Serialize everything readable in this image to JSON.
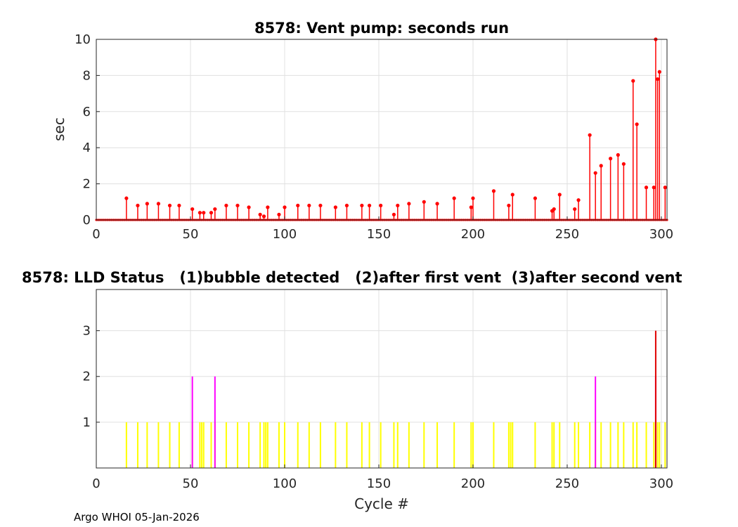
{
  "footer": "Argo WHOI 05-Jan-2026",
  "chart_data": [
    {
      "type": "stem",
      "title": "8578: Vent pump: seconds run",
      "xlabel": "",
      "ylabel": "sec",
      "xlim": [
        0,
        303
      ],
      "ylim": [
        0,
        10
      ],
      "xticks": [
        0,
        50,
        100,
        150,
        200,
        250,
        300
      ],
      "yticks": [
        0,
        2,
        4,
        6,
        8,
        10
      ],
      "grid": true,
      "color": "#ff0000",
      "baseline_x": [
        0,
        303
      ],
      "points": [
        [
          16,
          1.2
        ],
        [
          22,
          0.8
        ],
        [
          27,
          0.9
        ],
        [
          33,
          0.9
        ],
        [
          39,
          0.8
        ],
        [
          44,
          0.8
        ],
        [
          51,
          0.6
        ],
        [
          55,
          0.4
        ],
        [
          57,
          0.4
        ],
        [
          61,
          0.4
        ],
        [
          63,
          0.6
        ],
        [
          69,
          0.8
        ],
        [
          75,
          0.8
        ],
        [
          81,
          0.7
        ],
        [
          87,
          0.3
        ],
        [
          89,
          0.2
        ],
        [
          91,
          0.7
        ],
        [
          97,
          0.3
        ],
        [
          100,
          0.7
        ],
        [
          107,
          0.8
        ],
        [
          113,
          0.8
        ],
        [
          119,
          0.8
        ],
        [
          127,
          0.7
        ],
        [
          133,
          0.8
        ],
        [
          141,
          0.8
        ],
        [
          145,
          0.8
        ],
        [
          151,
          0.8
        ],
        [
          158,
          0.3
        ],
        [
          160,
          0.8
        ],
        [
          166,
          0.9
        ],
        [
          174,
          1.0
        ],
        [
          181,
          0.9
        ],
        [
          190,
          1.2
        ],
        [
          199,
          0.7
        ],
        [
          200,
          1.2
        ],
        [
          211,
          1.6
        ],
        [
          219,
          0.8
        ],
        [
          221,
          1.4
        ],
        [
          233,
          1.2
        ],
        [
          242,
          0.5
        ],
        [
          243,
          0.6
        ],
        [
          246,
          1.4
        ],
        [
          254,
          0.6
        ],
        [
          256,
          1.1
        ],
        [
          262,
          4.7
        ],
        [
          265,
          2.6
        ],
        [
          268,
          3.0
        ],
        [
          273,
          3.4
        ],
        [
          277,
          3.6
        ],
        [
          280,
          3.1
        ],
        [
          285,
          7.7
        ],
        [
          287,
          5.3
        ],
        [
          292,
          1.8
        ],
        [
          296,
          1.8
        ],
        [
          297,
          10.0
        ],
        [
          298,
          7.8
        ],
        [
          299,
          8.2
        ],
        [
          302,
          1.8
        ]
      ]
    },
    {
      "type": "stem",
      "title": "8578: LLD Status   (1)bubble detected   (2)after first vent  (3)after second vent",
      "xlabel": "Cycle #",
      "ylabel": "",
      "xlim": [
        0,
        303
      ],
      "ylim": [
        0,
        3.9
      ],
      "xticks": [
        0,
        50,
        100,
        150,
        200,
        250,
        300
      ],
      "yticks": [
        1,
        2,
        3
      ],
      "grid": true,
      "series": [
        {
          "name": "bubble detected",
          "level": 1,
          "color": "#ffff00",
          "x": [
            16,
            22,
            27,
            33,
            39,
            44,
            51,
            55,
            56,
            57,
            61,
            63,
            69,
            75,
            81,
            87,
            89,
            90,
            91,
            97,
            100,
            107,
            113,
            119,
            127,
            133,
            141,
            145,
            151,
            158,
            160,
            166,
            174,
            181,
            190,
            199,
            200,
            211,
            219,
            220,
            221,
            233,
            242,
            243,
            246,
            254,
            256,
            262,
            265,
            268,
            273,
            277,
            280,
            285,
            287,
            292,
            296,
            297,
            298,
            299,
            302
          ]
        },
        {
          "name": "after first vent",
          "level": 2,
          "color": "#ff00ff",
          "x": [
            51,
            63,
            265,
            297
          ]
        },
        {
          "name": "after second vent",
          "level": 3,
          "color": "#e00000",
          "x": [
            297
          ]
        }
      ]
    }
  ]
}
